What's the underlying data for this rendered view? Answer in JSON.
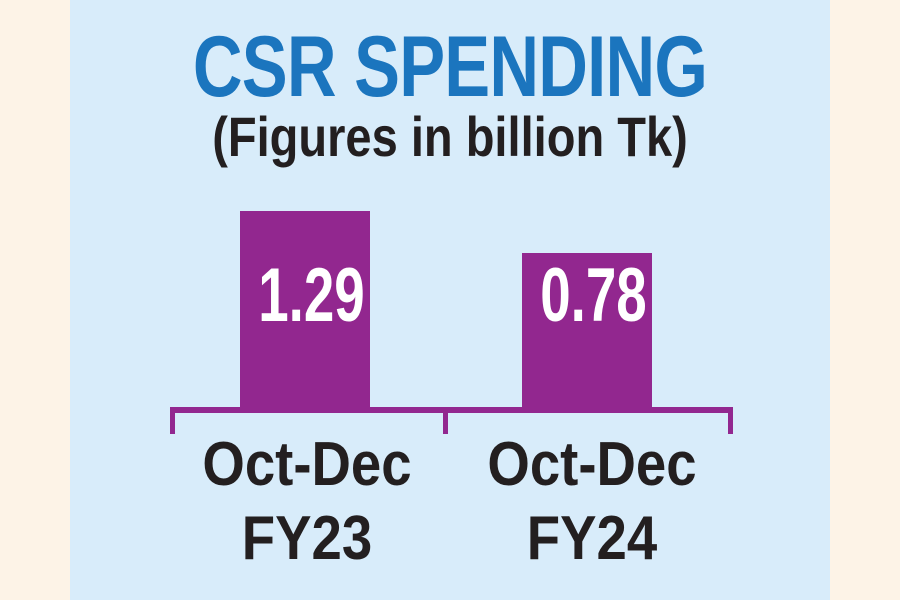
{
  "chart_data": {
    "type": "bar",
    "title": "CSR SPENDING",
    "subtitle": "(Figures in billion Tk)",
    "unit": "billion Tk",
    "categories": [
      "Oct-Dec FY23",
      "Oct-Dec FY24"
    ],
    "values": [
      1.29,
      0.78
    ],
    "value_labels": [
      "1.29",
      "0.78"
    ],
    "ylim": [
      0,
      1.5
    ],
    "grid": false,
    "legend": false,
    "colors": {
      "bar": "#92278F",
      "axis": "#92278F",
      "title": "#1B75BE",
      "text": "#231F20",
      "value_text": "#FFFFFF",
      "panel_bg": "#D8ECFA",
      "page_bg": "#FDF3E7"
    }
  },
  "chart": {
    "bars": [
      {
        "value_label": "1.29",
        "category_line1": "Oct-Dec",
        "category_line2": "FY23"
      },
      {
        "value_label": "0.78",
        "category_line1": "Oct-Dec",
        "category_line2": "FY24"
      }
    ]
  }
}
